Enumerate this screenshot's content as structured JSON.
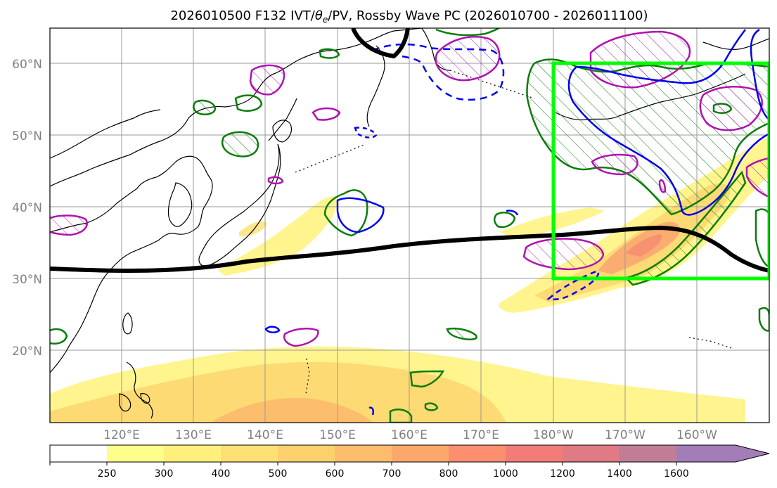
{
  "title_main": "2026010500 F132 IVT/",
  "title_theta": "θ",
  "title_sub": "e",
  "title_rest": "/PV, Rossby Wave PC (2026010700 - 2026011100)",
  "map": {
    "lon_labels": [
      "120°E",
      "130°E",
      "140°E",
      "150°E",
      "160°E",
      "170°E",
      "180°W",
      "170°W",
      "160°W"
    ],
    "lat_labels": [
      "60°N",
      "50°N",
      "40°N",
      "30°N",
      "20°N"
    ]
  },
  "colorbar": {
    "levels": [
      "250",
      "300",
      "400",
      "500",
      "600",
      "700",
      "800",
      "1000",
      "1200",
      "1400",
      "1600"
    ],
    "colors": [
      "#fdfd8a",
      "#fef07a",
      "#fde074",
      "#fdd06e",
      "#fdbd6c",
      "#fca86c",
      "#fb8f70",
      "#f37c78",
      "#e07a84",
      "#c27d96",
      "#a27db8"
    ]
  },
  "colors": {
    "ivt_low": "#fff27a",
    "ivt_mid": "#fdd36e",
    "ivt_high": "#f9a070",
    "pv_green": "#0a7d0a",
    "theta_magenta": "#b012b0",
    "neg_blue": "#0000ee",
    "box_green": "#00ff00",
    "wave_black": "#000000"
  }
}
